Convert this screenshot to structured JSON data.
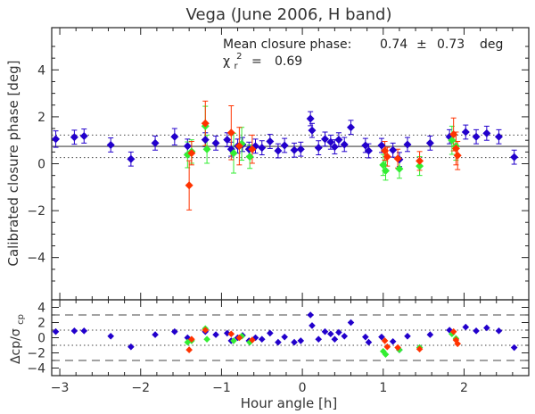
{
  "chart_data": [
    {
      "type": "scatter",
      "panel": "main",
      "title": "Vega (June 2006, H band)",
      "ylabel": "Calibrated closure phase [deg]",
      "xlim": [
        -3.1,
        2.8
      ],
      "ylim": [
        -5.8,
        5.8
      ],
      "yticks": [
        -4,
        -2,
        0,
        2,
        4
      ],
      "annotation": {
        "line1_label": "Mean closure phase:",
        "mean": "0.74",
        "pm": "±",
        "err": "0.73",
        "unit": "deg",
        "chi_sym": "χ",
        "chi_sub": "r",
        "chi_sup": "2",
        "chi_eq": "=",
        "chi_val": "0.69"
      },
      "mean_line": 0.74,
      "band": [
        0.26,
        1.22
      ],
      "series": [
        {
          "name": "blue",
          "color": "#2200cc",
          "points": [
            {
              "x": -3.05,
              "y": 1.05,
              "e": 0.35
            },
            {
              "x": -2.82,
              "y": 1.13,
              "e": 0.3
            },
            {
              "x": -2.7,
              "y": 1.18,
              "e": 0.3
            },
            {
              "x": -2.37,
              "y": 0.8,
              "e": 0.3
            },
            {
              "x": -2.12,
              "y": 0.2,
              "e": 0.3
            },
            {
              "x": -1.82,
              "y": 0.88,
              "e": 0.3
            },
            {
              "x": -1.58,
              "y": 1.15,
              "e": 0.35
            },
            {
              "x": -1.42,
              "y": 0.75,
              "e": 0.3
            },
            {
              "x": -1.2,
              "y": 1.02,
              "e": 0.3
            },
            {
              "x": -1.07,
              "y": 0.88,
              "e": 0.3
            },
            {
              "x": -0.93,
              "y": 1.02,
              "e": 0.3
            },
            {
              "x": -0.88,
              "y": 0.62,
              "e": 0.3
            },
            {
              "x": -0.8,
              "y": 0.75,
              "e": 0.3
            },
            {
              "x": -0.74,
              "y": 0.82,
              "e": 0.3
            },
            {
              "x": -0.66,
              "y": 0.62,
              "e": 0.3
            },
            {
              "x": -0.58,
              "y": 0.75,
              "e": 0.3
            },
            {
              "x": -0.5,
              "y": 0.68,
              "e": 0.3
            },
            {
              "x": -0.4,
              "y": 0.95,
              "e": 0.3
            },
            {
              "x": -0.3,
              "y": 0.55,
              "e": 0.3
            },
            {
              "x": -0.22,
              "y": 0.78,
              "e": 0.3
            },
            {
              "x": -0.1,
              "y": 0.58,
              "e": 0.3
            },
            {
              "x": -0.02,
              "y": 0.62,
              "e": 0.3
            },
            {
              "x": 0.1,
              "y": 1.92,
              "e": 0.3
            },
            {
              "x": 0.12,
              "y": 1.42,
              "e": 0.3
            },
            {
              "x": 0.2,
              "y": 0.68,
              "e": 0.3
            },
            {
              "x": 0.28,
              "y": 1.05,
              "e": 0.3
            },
            {
              "x": 0.35,
              "y": 0.92,
              "e": 0.3
            },
            {
              "x": 0.4,
              "y": 0.72,
              "e": 0.3
            },
            {
              "x": 0.45,
              "y": 1.02,
              "e": 0.3
            },
            {
              "x": 0.52,
              "y": 0.82,
              "e": 0.3
            },
            {
              "x": 0.6,
              "y": 1.55,
              "e": 0.3
            },
            {
              "x": 0.78,
              "y": 0.78,
              "e": 0.3
            },
            {
              "x": 0.82,
              "y": 0.55,
              "e": 0.3
            },
            {
              "x": 0.98,
              "y": 0.78,
              "e": 0.3
            },
            {
              "x": 1.12,
              "y": 0.58,
              "e": 0.3
            },
            {
              "x": 1.2,
              "y": 0.18,
              "e": 0.3
            },
            {
              "x": 1.3,
              "y": 0.82,
              "e": 0.3
            },
            {
              "x": 1.58,
              "y": 0.88,
              "e": 0.3
            },
            {
              "x": 1.82,
              "y": 1.15,
              "e": 0.3
            },
            {
              "x": 2.02,
              "y": 1.35,
              "e": 0.3
            },
            {
              "x": 2.15,
              "y": 1.15,
              "e": 0.3
            },
            {
              "x": 2.28,
              "y": 1.3,
              "e": 0.3
            },
            {
              "x": 2.43,
              "y": 1.15,
              "e": 0.3
            },
            {
              "x": 2.62,
              "y": 0.28,
              "e": 0.3
            }
          ]
        },
        {
          "name": "red",
          "color": "#ff3300",
          "points": [
            {
              "x": -1.4,
              "y": -0.92,
              "e": 1.05
            },
            {
              "x": -1.37,
              "y": 0.45,
              "e": 0.5
            },
            {
              "x": -1.2,
              "y": 1.72,
              "e": 0.95
            },
            {
              "x": -0.88,
              "y": 1.32,
              "e": 1.15
            },
            {
              "x": -0.78,
              "y": 0.75,
              "e": 0.8
            },
            {
              "x": -0.62,
              "y": 0.62,
              "e": 0.6
            },
            {
              "x": 1.02,
              "y": 0.55,
              "e": 0.4
            },
            {
              "x": 1.05,
              "y": 0.3,
              "e": 0.4
            },
            {
              "x": 1.18,
              "y": 0.22,
              "e": 0.4
            },
            {
              "x": 1.45,
              "y": 0.12,
              "e": 0.4
            },
            {
              "x": 1.87,
              "y": 1.25,
              "e": 0.7
            },
            {
              "x": 1.9,
              "y": 0.65,
              "e": 0.7
            },
            {
              "x": 1.92,
              "y": 0.35,
              "e": 0.6
            }
          ]
        },
        {
          "name": "green",
          "color": "#33ee33",
          "points": [
            {
              "x": -1.42,
              "y": 0.38,
              "e": 0.55
            },
            {
              "x": -1.37,
              "y": 0.52,
              "e": 0.5
            },
            {
              "x": -1.2,
              "y": 1.6,
              "e": 0.85
            },
            {
              "x": -1.18,
              "y": 0.62,
              "e": 0.6
            },
            {
              "x": -0.85,
              "y": 0.45,
              "e": 0.85
            },
            {
              "x": -0.75,
              "y": 0.85,
              "e": 0.7
            },
            {
              "x": -0.65,
              "y": 0.3,
              "e": 0.5
            },
            {
              "x": 1.0,
              "y": -0.05,
              "e": 0.45
            },
            {
              "x": 1.03,
              "y": -0.3,
              "e": 0.4
            },
            {
              "x": 1.2,
              "y": -0.22,
              "e": 0.4
            },
            {
              "x": 1.45,
              "y": -0.1,
              "e": 0.4
            },
            {
              "x": 1.85,
              "y": 1.0,
              "e": 0.6
            },
            {
              "x": 1.9,
              "y": 0.75,
              "e": 0.6
            }
          ]
        }
      ]
    },
    {
      "type": "scatter",
      "panel": "residuals",
      "xlabel": "Hour angle [h]",
      "ylabel_parts": [
        "Δcp/σ",
        "cp"
      ],
      "xlim": [
        -3.1,
        2.8
      ],
      "ylim": [
        -5.0,
        5.0
      ],
      "xticks": [
        -3,
        -2,
        -1,
        0,
        1,
        2
      ],
      "yticks": [
        -4,
        -2,
        0,
        2,
        4
      ],
      "dashed_lines": [
        3,
        -3
      ],
      "dotted_lines": [
        1,
        -1
      ],
      "series": [
        {
          "name": "blue",
          "color": "#2200cc",
          "points": [
            {
              "x": -3.05,
              "y": 0.8
            },
            {
              "x": -2.82,
              "y": 0.9
            },
            {
              "x": -2.7,
              "y": 0.9
            },
            {
              "x": -2.37,
              "y": 0.2
            },
            {
              "x": -2.12,
              "y": -1.2
            },
            {
              "x": -1.82,
              "y": 0.4
            },
            {
              "x": -1.58,
              "y": 0.8
            },
            {
              "x": -1.42,
              "y": 0.0
            },
            {
              "x": -1.2,
              "y": 0.8
            },
            {
              "x": -1.07,
              "y": 0.4
            },
            {
              "x": -0.93,
              "y": 0.6
            },
            {
              "x": -0.88,
              "y": -0.4
            },
            {
              "x": -0.8,
              "y": 0.0
            },
            {
              "x": -0.74,
              "y": 0.3
            },
            {
              "x": -0.66,
              "y": -0.4
            },
            {
              "x": -0.58,
              "y": 0.0
            },
            {
              "x": -0.5,
              "y": -0.2
            },
            {
              "x": -0.4,
              "y": 0.6
            },
            {
              "x": -0.3,
              "y": -0.6
            },
            {
              "x": -0.22,
              "y": 0.1
            },
            {
              "x": -0.1,
              "y": -0.6
            },
            {
              "x": -0.02,
              "y": -0.4
            },
            {
              "x": 0.1,
              "y": 3.0
            },
            {
              "x": 0.12,
              "y": 1.6
            },
            {
              "x": 0.2,
              "y": -0.2
            },
            {
              "x": 0.28,
              "y": 0.8
            },
            {
              "x": 0.35,
              "y": 0.5
            },
            {
              "x": 0.4,
              "y": -0.2
            },
            {
              "x": 0.45,
              "y": 0.7
            },
            {
              "x": 0.52,
              "y": 0.2
            },
            {
              "x": 0.6,
              "y": 2.0
            },
            {
              "x": 0.78,
              "y": 0.1
            },
            {
              "x": 0.82,
              "y": -0.6
            },
            {
              "x": 0.98,
              "y": 0.1
            },
            {
              "x": 1.12,
              "y": -0.5
            },
            {
              "x": 1.2,
              "y": -1.6
            },
            {
              "x": 1.3,
              "y": 0.2
            },
            {
              "x": 1.58,
              "y": 0.4
            },
            {
              "x": 1.82,
              "y": 1.0
            },
            {
              "x": 2.02,
              "y": 1.4
            },
            {
              "x": 2.15,
              "y": 0.9
            },
            {
              "x": 2.28,
              "y": 1.3
            },
            {
              "x": 2.43,
              "y": 0.9
            },
            {
              "x": 2.62,
              "y": -1.3
            }
          ]
        },
        {
          "name": "red",
          "color": "#ff3300",
          "points": [
            {
              "x": -1.4,
              "y": -1.6
            },
            {
              "x": -1.37,
              "y": -0.2
            },
            {
              "x": -1.2,
              "y": 1.0
            },
            {
              "x": -0.88,
              "y": 0.5
            },
            {
              "x": -0.78,
              "y": 0.0
            },
            {
              "x": -0.62,
              "y": -0.3
            },
            {
              "x": 1.02,
              "y": -0.4
            },
            {
              "x": 1.05,
              "y": -1.2
            },
            {
              "x": 1.18,
              "y": -1.3
            },
            {
              "x": 1.45,
              "y": -1.5
            },
            {
              "x": 1.87,
              "y": 0.8
            },
            {
              "x": 1.9,
              "y": -0.3
            },
            {
              "x": 1.92,
              "y": -0.8
            }
          ]
        },
        {
          "name": "green",
          "color": "#33ee33",
          "points": [
            {
              "x": -1.42,
              "y": -0.6
            },
            {
              "x": -1.37,
              "y": -0.4
            },
            {
              "x": -1.2,
              "y": 1.2
            },
            {
              "x": -1.18,
              "y": -0.2
            },
            {
              "x": -0.85,
              "y": -0.4
            },
            {
              "x": -0.75,
              "y": 0.2
            },
            {
              "x": -0.65,
              "y": -0.6
            },
            {
              "x": 1.0,
              "y": -1.8
            },
            {
              "x": 1.03,
              "y": -2.2
            },
            {
              "x": 1.2,
              "y": -1.6
            },
            {
              "x": 1.45,
              "y": -1.3
            },
            {
              "x": 1.85,
              "y": 0.5
            },
            {
              "x": 1.9,
              "y": -0.1
            }
          ]
        }
      ]
    }
  ]
}
